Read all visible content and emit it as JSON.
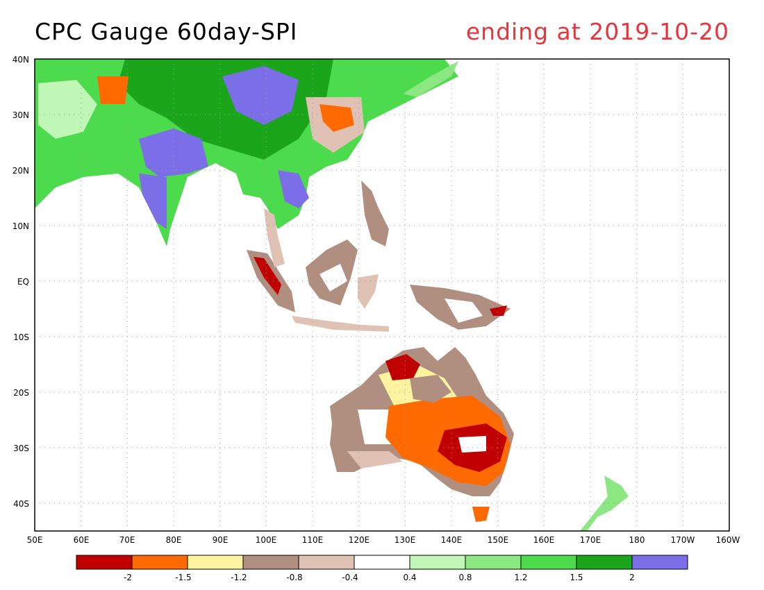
{
  "title": {
    "left": "CPC Gauge 60day-SPI",
    "right": "ending at 2019-10-20"
  },
  "colors": {
    "title_right": "#e8343a"
  },
  "map": {
    "lon_range": [
      50,
      200
    ],
    "lat_range": [
      -45,
      40
    ],
    "lat_labels": [
      "40N",
      "30N",
      "20N",
      "10N",
      "EQ",
      "10S",
      "20S",
      "30S",
      "40S"
    ],
    "lon_labels": [
      "50E",
      "60E",
      "70E",
      "80E",
      "90E",
      "100E",
      "110E",
      "120E",
      "130E",
      "140E",
      "150E",
      "160E",
      "170E",
      "180",
      "170W",
      "160W"
    ],
    "grid": true
  },
  "legend": {
    "colors": [
      "#c00000",
      "#ff6a00",
      "#fff3a0",
      "#b08f80",
      "#e0c2b5",
      "#ffffff",
      "#c0f6b6",
      "#8be880",
      "#4cdb4c",
      "#1aa51a",
      "#7b6ee6"
    ],
    "labels": [
      "-2",
      "-1.5",
      "-1.2",
      "-0.8",
      "-0.4",
      "0.4",
      "0.8",
      "1.2",
      "1.5",
      "2"
    ]
  }
}
